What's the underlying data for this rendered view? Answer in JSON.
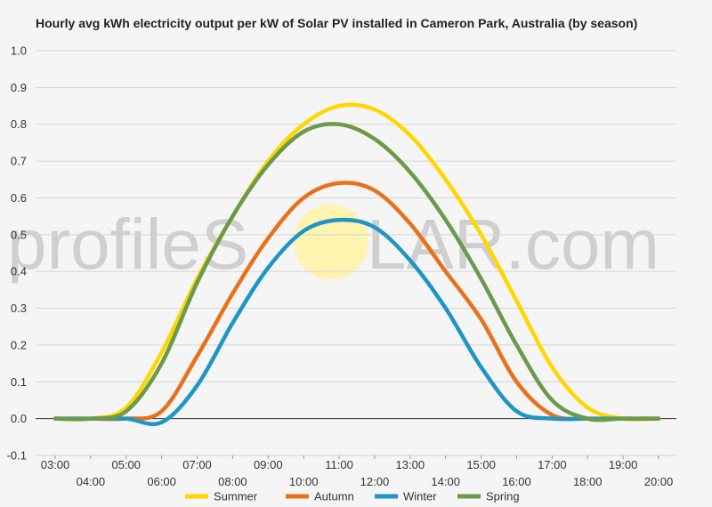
{
  "chart_data": {
    "type": "line",
    "title": "Hourly avg kWh electricity output per kW of Solar PV installed in Cameron Park, Australia (by season)",
    "xlabel": "",
    "ylabel": "",
    "ylim": [
      -0.1,
      1.0
    ],
    "yticks": [
      "-0.1",
      "0.0",
      "0.1",
      "0.2",
      "0.3",
      "0.4",
      "0.5",
      "0.6",
      "0.7",
      "0.8",
      "0.9",
      "1.0"
    ],
    "x": [
      "03:00",
      "04:00",
      "05:00",
      "06:00",
      "07:00",
      "08:00",
      "09:00",
      "10:00",
      "11:00",
      "12:00",
      "13:00",
      "14:00",
      "15:00",
      "16:00",
      "17:00",
      "18:00",
      "19:00",
      "20:00"
    ],
    "grid": true,
    "legend_position": "bottom",
    "series": [
      {
        "name": "Summer",
        "color": "#ffd600",
        "values": [
          0.0,
          0.0,
          0.03,
          0.18,
          0.38,
          0.55,
          0.7,
          0.8,
          0.85,
          0.84,
          0.77,
          0.65,
          0.5,
          0.32,
          0.14,
          0.03,
          0.0,
          0.0
        ]
      },
      {
        "name": "Autumn",
        "color": "#e8711b",
        "values": [
          0.0,
          0.0,
          0.0,
          0.02,
          0.17,
          0.34,
          0.49,
          0.6,
          0.64,
          0.62,
          0.53,
          0.4,
          0.27,
          0.1,
          0.01,
          0.0,
          0.0,
          0.0
        ]
      },
      {
        "name": "Winter",
        "color": "#1f95c6",
        "values": [
          0.0,
          0.0,
          0.0,
          -0.01,
          0.09,
          0.26,
          0.41,
          0.51,
          0.54,
          0.52,
          0.43,
          0.3,
          0.14,
          0.02,
          0.0,
          0.0,
          0.0,
          0.0
        ]
      },
      {
        "name": "Spring",
        "color": "#6b9a4b",
        "values": [
          0.0,
          0.0,
          0.02,
          0.15,
          0.37,
          0.55,
          0.69,
          0.78,
          0.8,
          0.76,
          0.67,
          0.54,
          0.38,
          0.2,
          0.05,
          0.0,
          0.0,
          0.0
        ]
      }
    ]
  },
  "watermark": {
    "left": "profileS",
    "right": "LAR.com",
    "sun_color": "#fff3b0"
  }
}
